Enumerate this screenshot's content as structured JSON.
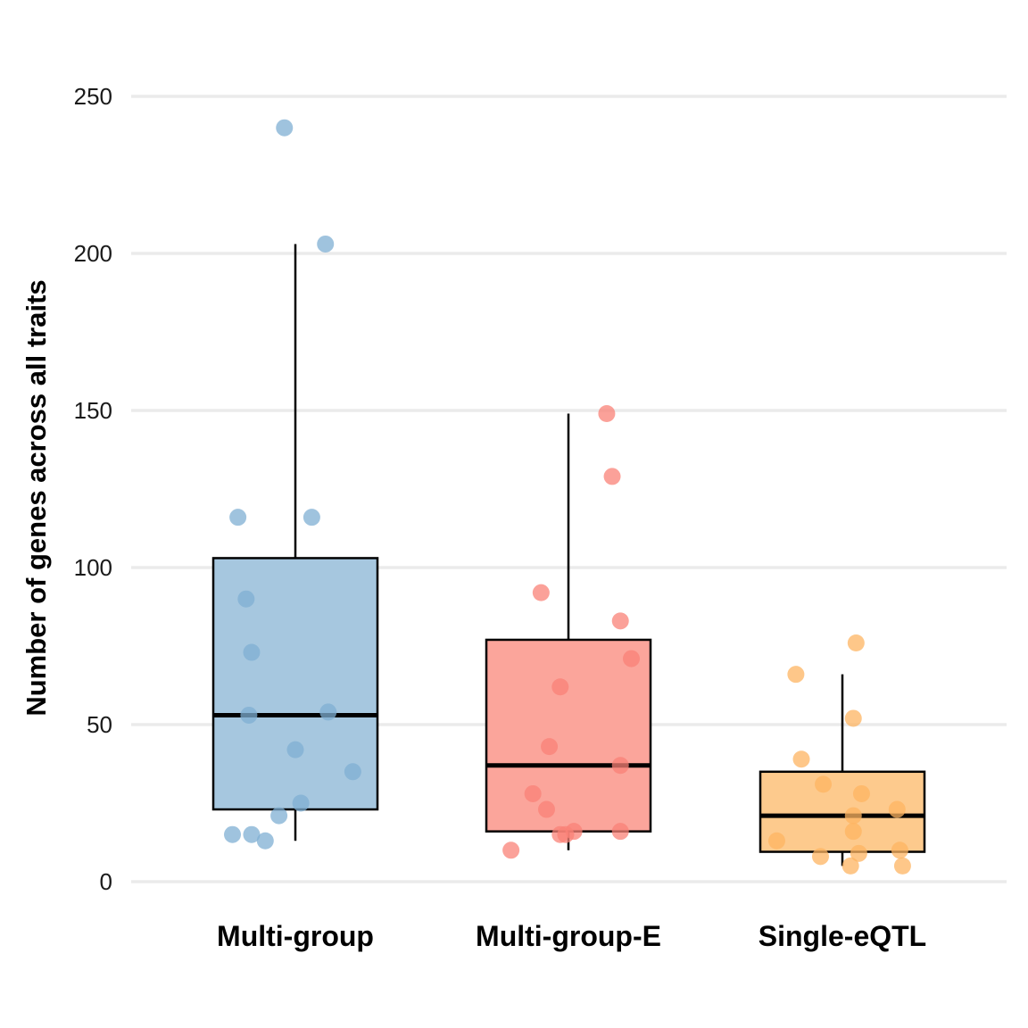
{
  "chart_data": {
    "type": "boxplot",
    "title": "",
    "xlabel": "",
    "ylabel": "Number of genes across all traits",
    "ylim": [
      0,
      250
    ],
    "yticks": [
      0,
      50,
      100,
      150,
      200,
      250
    ],
    "grid": "horizontal-major",
    "legend": "none",
    "categories": [
      "Multi-group",
      "Multi-group-E",
      "Single-eQTL"
    ],
    "series": [
      {
        "name": "Multi-group",
        "color": "#7fafd3",
        "box_fill": "#a6c7df",
        "box": {
          "q1": 23,
          "median": 53,
          "q3": 103,
          "whisker_low": 13,
          "whisker_high": 203
        },
        "points": [
          {
            "y": 240,
            "jitter": -0.04
          },
          {
            "y": 203,
            "jitter": 0.11
          },
          {
            "y": 116,
            "jitter": -0.21
          },
          {
            "y": 116,
            "jitter": 0.06
          },
          {
            "y": 90,
            "jitter": -0.18
          },
          {
            "y": 73,
            "jitter": -0.16
          },
          {
            "y": 54,
            "jitter": 0.12
          },
          {
            "y": 53,
            "jitter": -0.17
          },
          {
            "y": 42,
            "jitter": 0.0
          },
          {
            "y": 35,
            "jitter": 0.21
          },
          {
            "y": 25,
            "jitter": 0.02
          },
          {
            "y": 21,
            "jitter": -0.06
          },
          {
            "y": 15,
            "jitter": -0.23
          },
          {
            "y": 15,
            "jitter": -0.16
          },
          {
            "y": 13,
            "jitter": -0.11
          }
        ]
      },
      {
        "name": "Multi-group-E",
        "color": "#f98277",
        "box_fill": "#fba59b",
        "box": {
          "q1": 16,
          "median": 37,
          "q3": 77,
          "whisker_low": 10,
          "whisker_high": 149
        },
        "points": [
          {
            "y": 149,
            "jitter": 0.14
          },
          {
            "y": 129,
            "jitter": 0.16
          },
          {
            "y": 92,
            "jitter": -0.1
          },
          {
            "y": 83,
            "jitter": 0.19
          },
          {
            "y": 71,
            "jitter": 0.23
          },
          {
            "y": 62,
            "jitter": -0.03
          },
          {
            "y": 43,
            "jitter": -0.07
          },
          {
            "y": 37,
            "jitter": 0.19
          },
          {
            "y": 28,
            "jitter": -0.13
          },
          {
            "y": 23,
            "jitter": -0.08
          },
          {
            "y": 16,
            "jitter": 0.02
          },
          {
            "y": 16,
            "jitter": 0.19
          },
          {
            "y": 15,
            "jitter": -0.03
          },
          {
            "y": 15,
            "jitter": -0.01
          },
          {
            "y": 10,
            "jitter": -0.21
          }
        ]
      },
      {
        "name": "Single-eQTL",
        "color": "#fdb462",
        "box_fill": "#fdca8d",
        "box": {
          "q1": 9.5,
          "median": 21,
          "q3": 35,
          "whisker_low": 5,
          "whisker_high": 66
        },
        "points": [
          {
            "y": 76,
            "jitter": 0.05
          },
          {
            "y": 66,
            "jitter": -0.17
          },
          {
            "y": 52,
            "jitter": 0.04
          },
          {
            "y": 39,
            "jitter": -0.15
          },
          {
            "y": 31,
            "jitter": -0.07
          },
          {
            "y": 28,
            "jitter": 0.07
          },
          {
            "y": 23,
            "jitter": 0.2
          },
          {
            "y": 21,
            "jitter": 0.04
          },
          {
            "y": 16,
            "jitter": 0.04
          },
          {
            "y": 13,
            "jitter": -0.24
          },
          {
            "y": 10,
            "jitter": 0.21
          },
          {
            "y": 9,
            "jitter": 0.06
          },
          {
            "y": 8,
            "jitter": -0.08
          },
          {
            "y": 5,
            "jitter": 0.03
          },
          {
            "y": 5,
            "jitter": 0.22
          }
        ]
      }
    ]
  }
}
